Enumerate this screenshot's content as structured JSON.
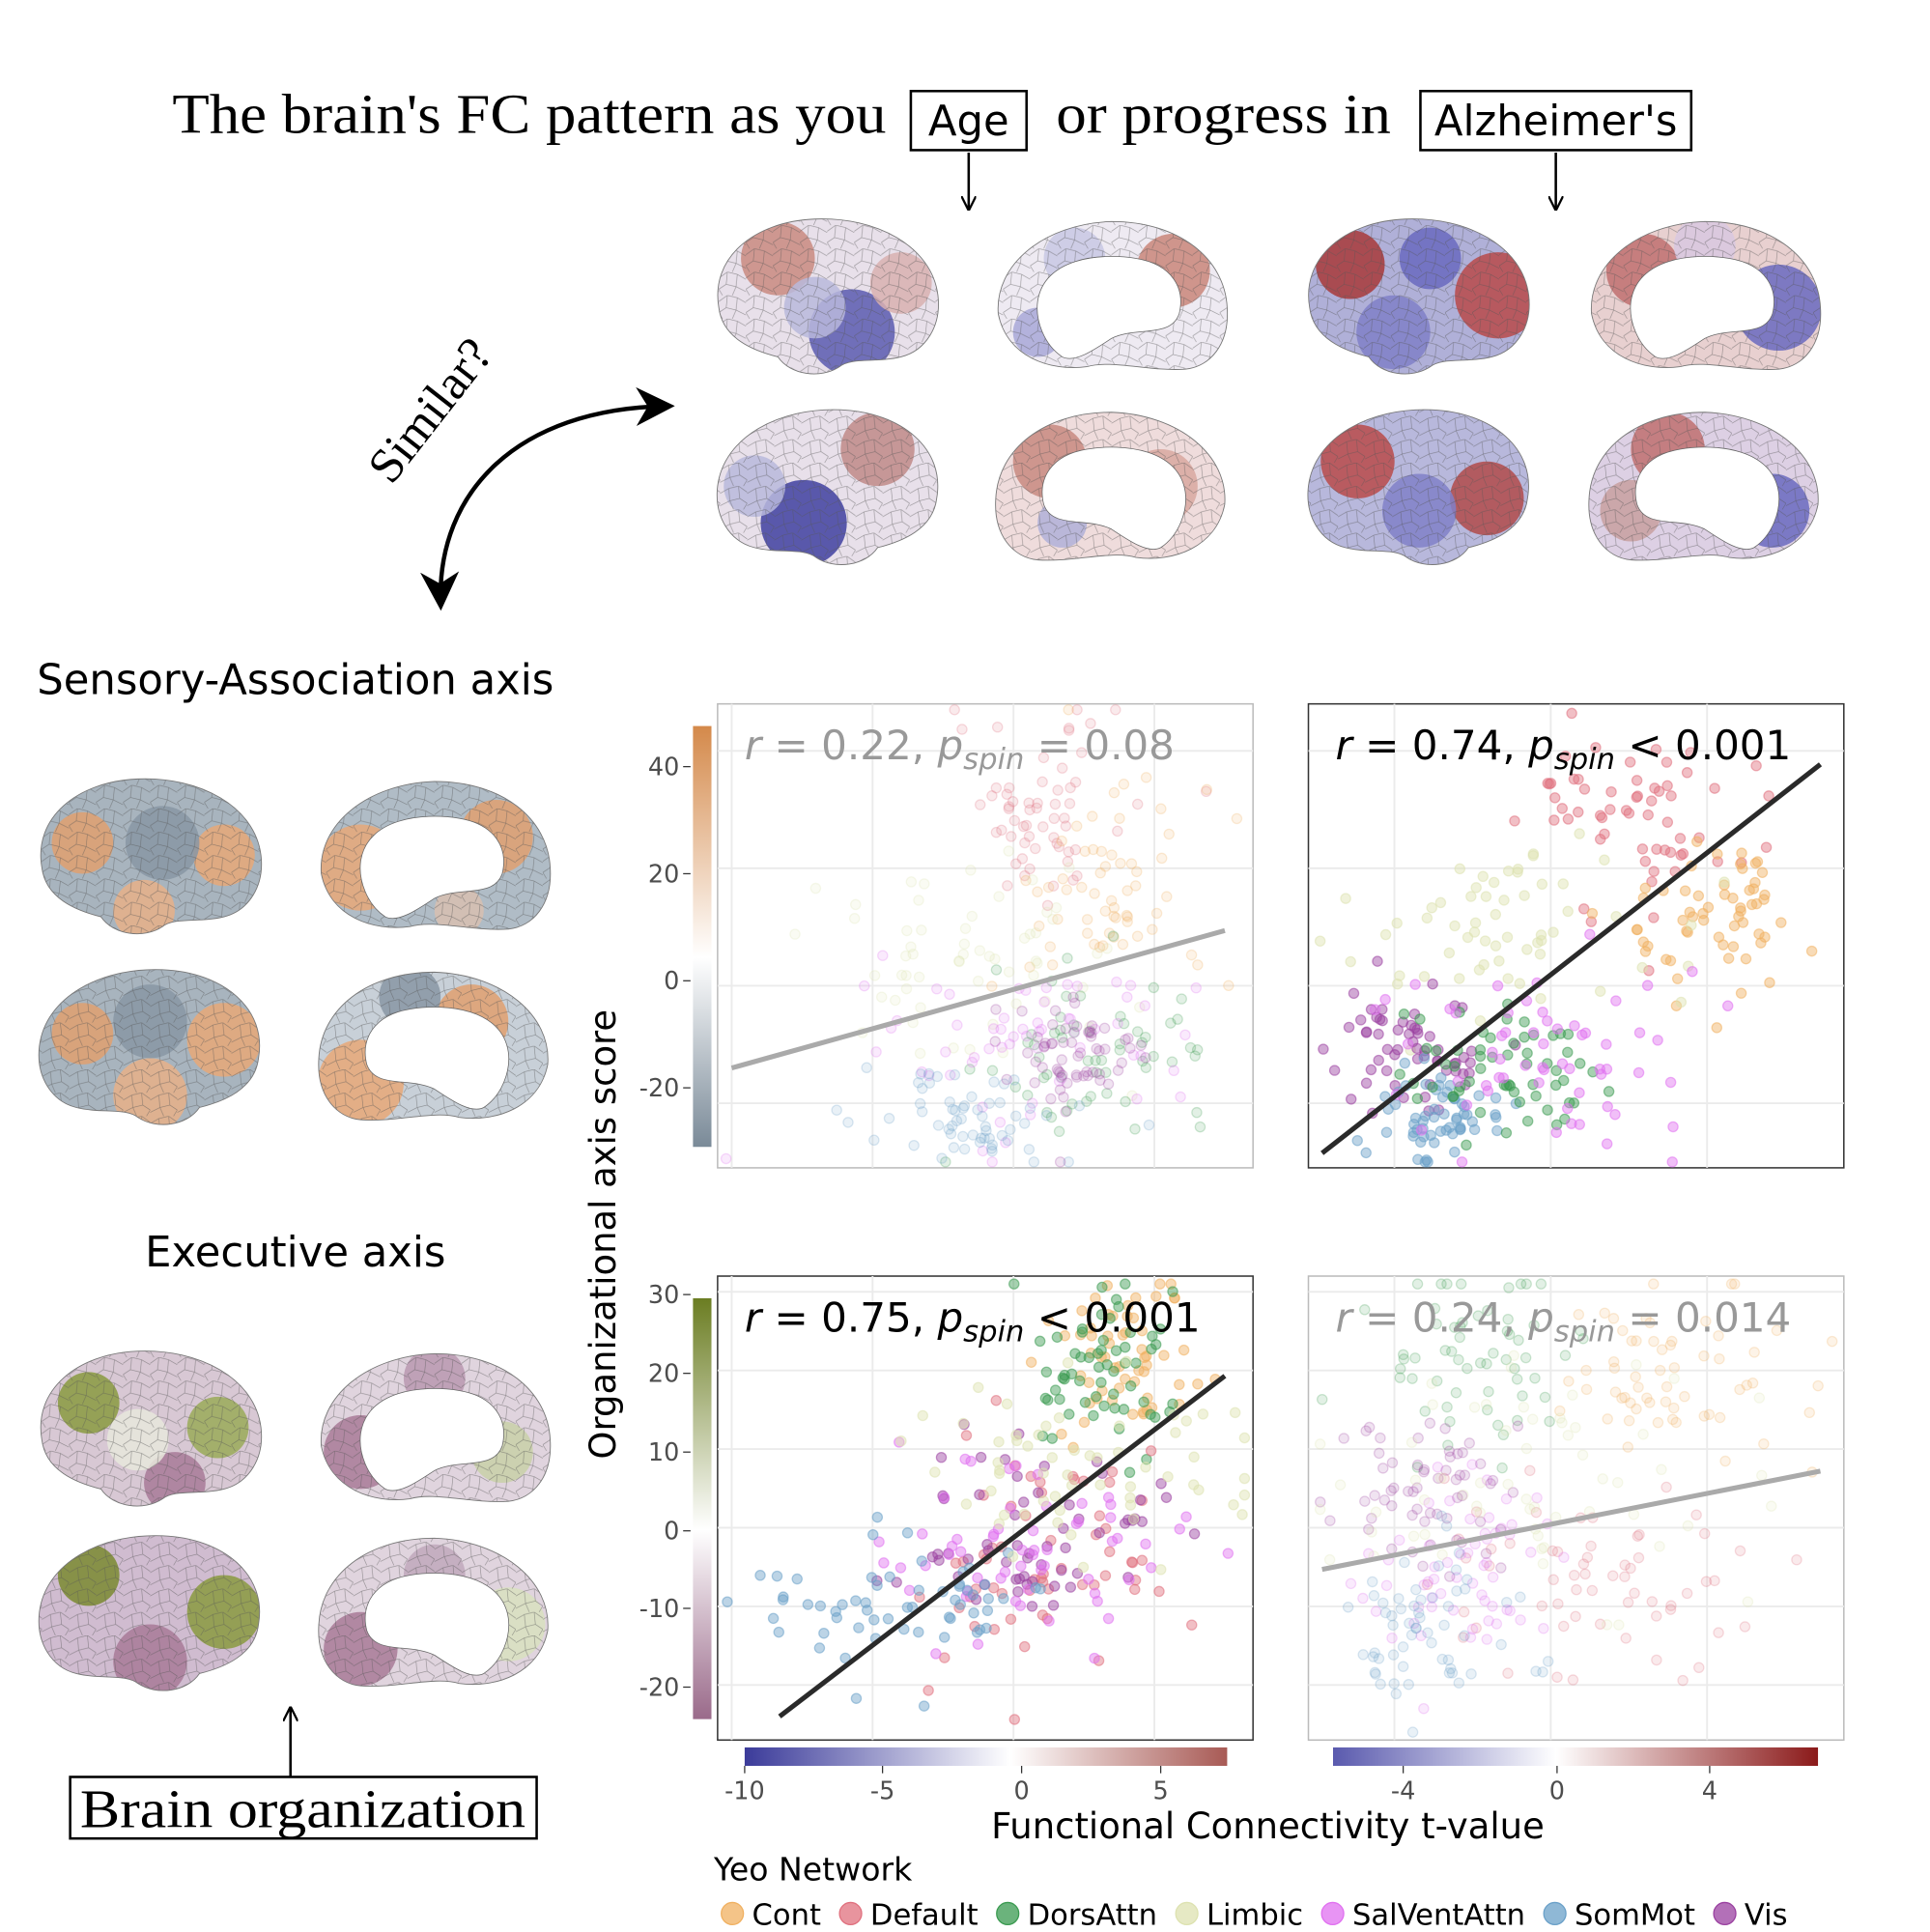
{
  "title": {
    "prefix": "The brain's FC pattern as you",
    "box1": "Age",
    "middle": "or progress in",
    "box2": "Alzheimer's"
  },
  "similar_label": "Similar?",
  "axes_titles": {
    "sensory": "Sensory-Association axis",
    "executive": "Executive axis"
  },
  "brain_organization_label": "Brain organization",
  "colors": {
    "fc_negative": "#3b3b9a",
    "fc_zero": "#ffffff",
    "fc_positive": "#8b1a1a",
    "sa_low": "#7a8a98",
    "sa_high": "#d4894a",
    "exec_low": "#9a6a8a",
    "exec_high": "#6b7d22"
  },
  "chart_data": [
    {
      "type": "scatter",
      "panel": "sensory-age",
      "annotation": {
        "r": "0.22",
        "op": "=",
        "p": "0.08"
      },
      "significant": false,
      "xlim": [
        -10.5,
        8.5
      ],
      "ylim": [
        -31,
        48
      ],
      "xticks": [
        -10,
        -5,
        0,
        5
      ],
      "yticks": [
        40,
        20,
        0,
        -20
      ],
      "fit_line": {
        "x": [
          -10,
          7.5
        ],
        "y": [
          -14,
          9.4
        ]
      }
    },
    {
      "type": "scatter",
      "panel": "sensory-alzheimers",
      "annotation": {
        "r": "0.74",
        "op": "<",
        "p": "0.001"
      },
      "significant": true,
      "xlim": [
        -6.2,
        7.5
      ],
      "ylim": [
        -31,
        48
      ],
      "xticks": [
        -4,
        0,
        4
      ],
      "yticks": [
        40,
        20,
        0,
        -20
      ],
      "fit_line": {
        "x": [
          -5.85,
          6.9
        ],
        "y": [
          -28.5,
          37.7
        ]
      }
    },
    {
      "type": "scatter",
      "panel": "executive-age",
      "annotation": {
        "r": "0.75",
        "op": "<",
        "p": "0.001"
      },
      "significant": true,
      "xlim": [
        -10.5,
        8.5
      ],
      "ylim": [
        -27,
        32
      ],
      "xticks": [
        -10,
        -5,
        0,
        5
      ],
      "yticks": [
        30,
        20,
        10,
        0,
        -10,
        -20
      ],
      "fit_line": {
        "x": [
          -8.3,
          7.5
        ],
        "y": [
          -24,
          19.3
        ]
      }
    },
    {
      "type": "scatter",
      "panel": "executive-alzheimers",
      "annotation": {
        "r": "0.24",
        "op": "=",
        "p": "0.014"
      },
      "significant": false,
      "xlim": [
        -6.2,
        7.5
      ],
      "ylim": [
        -27,
        32
      ],
      "xticks": [
        -4,
        0,
        4
      ],
      "yticks": [
        30,
        20,
        10,
        0,
        -10,
        -20
      ],
      "fit_line": {
        "x": [
          -5.85,
          6.9
        ],
        "y": [
          -5.3,
          7.2
        ]
      }
    }
  ],
  "x_colorbars": [
    {
      "ticks": [
        "-10",
        "-5",
        "0",
        "5"
      ]
    },
    {
      "ticks": [
        "-4",
        "0",
        "4"
      ]
    }
  ],
  "y_ticks": {
    "top": [
      "40",
      "20",
      "0",
      "-20"
    ],
    "bottom": [
      "30",
      "20",
      "10",
      "0",
      "-10",
      "-20"
    ]
  },
  "xlabel": "Functional Connectivity t-value",
  "ylabel": "Organizational axis score",
  "annotation_sub": "spin",
  "legend": {
    "title": "Yeo Network",
    "items": [
      {
        "label": "Cont",
        "color": "#f0b060"
      },
      {
        "label": "Default",
        "color": "#e0707e"
      },
      {
        "label": "DorsAttn",
        "color": "#3a9a50"
      },
      {
        "label": "Limbic",
        "color": "#dde2b0"
      },
      {
        "label": "SalVentAttn",
        "color": "#e070f0"
      },
      {
        "label": "SomMot",
        "color": "#6aa0c8"
      },
      {
        "label": "Vis",
        "color": "#9a40a0"
      }
    ]
  }
}
